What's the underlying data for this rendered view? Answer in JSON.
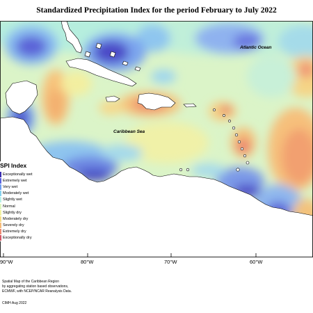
{
  "title": "Standardized Precipitation Index for the period February to July 2022",
  "map_labels": {
    "ocean": "Atlantic Ocean",
    "sea": "Caribbean Sea"
  },
  "longitude_ticks": [
    "90°W",
    "80°W",
    "70°W",
    "60°W"
  ],
  "legend": {
    "title": "SPI Index",
    "items": [
      {
        "label": "Exceptionally wet",
        "color": "#3a2db0"
      },
      {
        "label": "Extremely wet",
        "color": "#5a63de"
      },
      {
        "label": "Very wet",
        "color": "#6f9ff0"
      },
      {
        "label": "Moderately wet",
        "color": "#86d2ef"
      },
      {
        "label": "Slightly wet",
        "color": "#b8efe7"
      },
      {
        "label": "Normal",
        "color": "#dff6c2"
      },
      {
        "label": "Slightly dry",
        "color": "#f2f2a2"
      },
      {
        "label": "Moderately dry",
        "color": "#f6dc88"
      },
      {
        "label": "Severely dry",
        "color": "#f7bc7a"
      },
      {
        "label": "Extremely dry",
        "color": "#ee8c73"
      },
      {
        "label": "Exceptionally dry",
        "color": "#d35767"
      }
    ]
  },
  "footer": {
    "line1": "Spatial Map of the Caribbean Region",
    "line2": "by aggregating station based observations,",
    "line3": "ECMWF, with NCEP/NCAR Reanalysis Data.",
    "credit": "CIMH Aug 2022"
  }
}
